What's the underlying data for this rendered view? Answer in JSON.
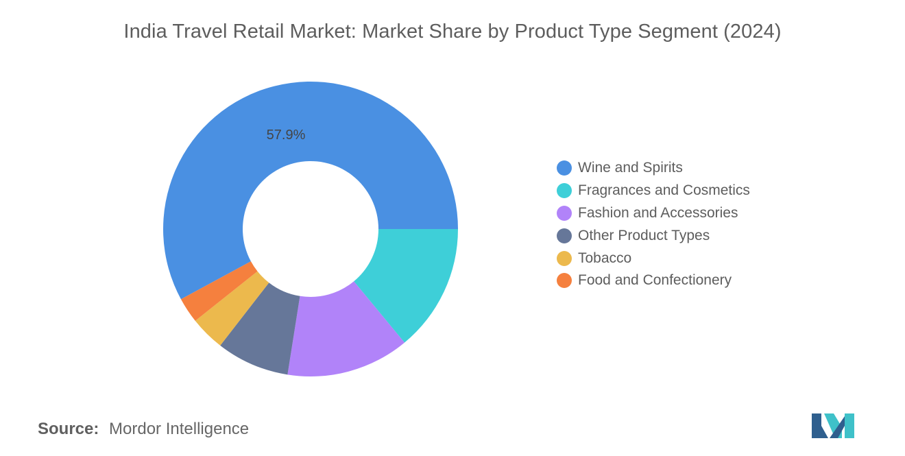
{
  "chart_data": {
    "type": "pie",
    "title": "India Travel Retail Market: Market Share by Product Type Segment (2024)",
    "categories": [
      "Wine and Spirits",
      "Fragrances and Cosmetics",
      "Fashion and Accessories",
      "Other Product Types",
      "Tobacco",
      "Food and Confectionery"
    ],
    "values": [
      57.9,
      14.0,
      13.5,
      8.0,
      3.8,
      2.8
    ],
    "data_labels": [
      "57.9%",
      "",
      "",
      "",
      "",
      ""
    ],
    "colors": [
      "#4a90e2",
      "#3ecfd8",
      "#b183f9",
      "#667799",
      "#ecb94d",
      "#f5803e"
    ],
    "donut": true,
    "legend_position": "right"
  },
  "source": {
    "label": "Source:",
    "value": "Mordor Intelligence"
  },
  "logo": {
    "icon": "mordor-intelligence-logo-icon",
    "colors": [
      "#2f5f8e",
      "#3fc1c9"
    ]
  }
}
